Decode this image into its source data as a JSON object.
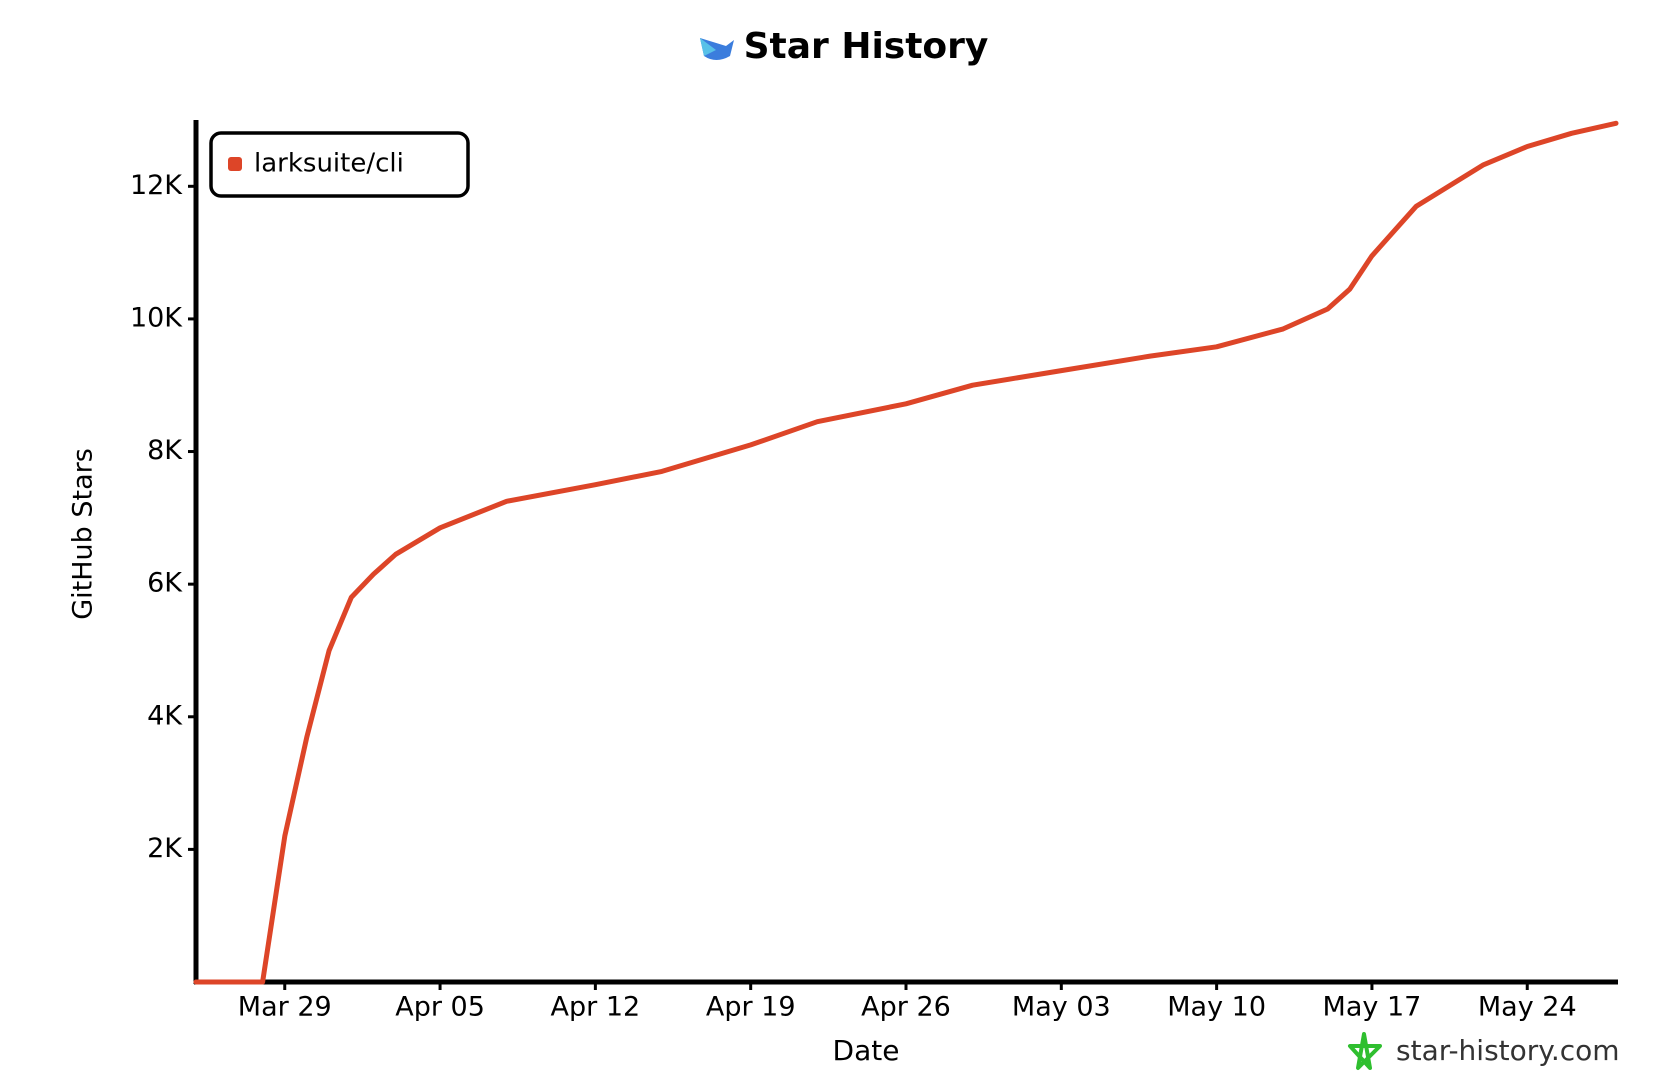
{
  "chart_data": {
    "type": "line",
    "title": "Star History",
    "x_label": "Date",
    "y_label": "GitHub Stars",
    "watermark": "star-history.com",
    "x": [
      "Mar 25",
      "Mar 26",
      "Mar 27",
      "Mar 28",
      "Mar 29",
      "Mar 30",
      "Mar 31",
      "Apr 01",
      "Apr 02",
      "Apr 03",
      "Apr 05",
      "Apr 08",
      "Apr 12",
      "Apr 15",
      "Apr 19",
      "Apr 22",
      "Apr 26",
      "Apr 29",
      "May 03",
      "May 07",
      "May 10",
      "May 13",
      "May 15",
      "May 16",
      "May 17",
      "May 19",
      "May 22",
      "May 24",
      "May 26",
      "May 28"
    ],
    "series": [
      {
        "name": "larksuite/cli",
        "color": "#dd4528",
        "values": [
          0,
          0,
          0,
          0,
          2200,
          3700,
          5000,
          5800,
          6150,
          6450,
          6850,
          7250,
          7500,
          7700,
          8100,
          8450,
          8720,
          9000,
          9220,
          9440,
          9580,
          9850,
          10150,
          10450,
          10950,
          11700,
          12320,
          12600,
          12800,
          12950
        ]
      }
    ],
    "xlim": [
      "Mar 25",
      "May 28"
    ],
    "xticks": [
      "Mar 29",
      "Apr 05",
      "Apr 12",
      "Apr 19",
      "Apr 26",
      "May 03",
      "May 10",
      "May 17",
      "May 24"
    ],
    "ylim": [
      0,
      13000
    ],
    "yticks": [
      {
        "value": 2000,
        "label": "2K"
      },
      {
        "value": 4000,
        "label": "4K"
      },
      {
        "value": 6000,
        "label": "6K"
      },
      {
        "value": 8000,
        "label": "8K"
      },
      {
        "value": 10000,
        "label": "10K"
      },
      {
        "value": 12000,
        "label": "12K"
      }
    ],
    "legend": "top-left",
    "grid": false
  }
}
